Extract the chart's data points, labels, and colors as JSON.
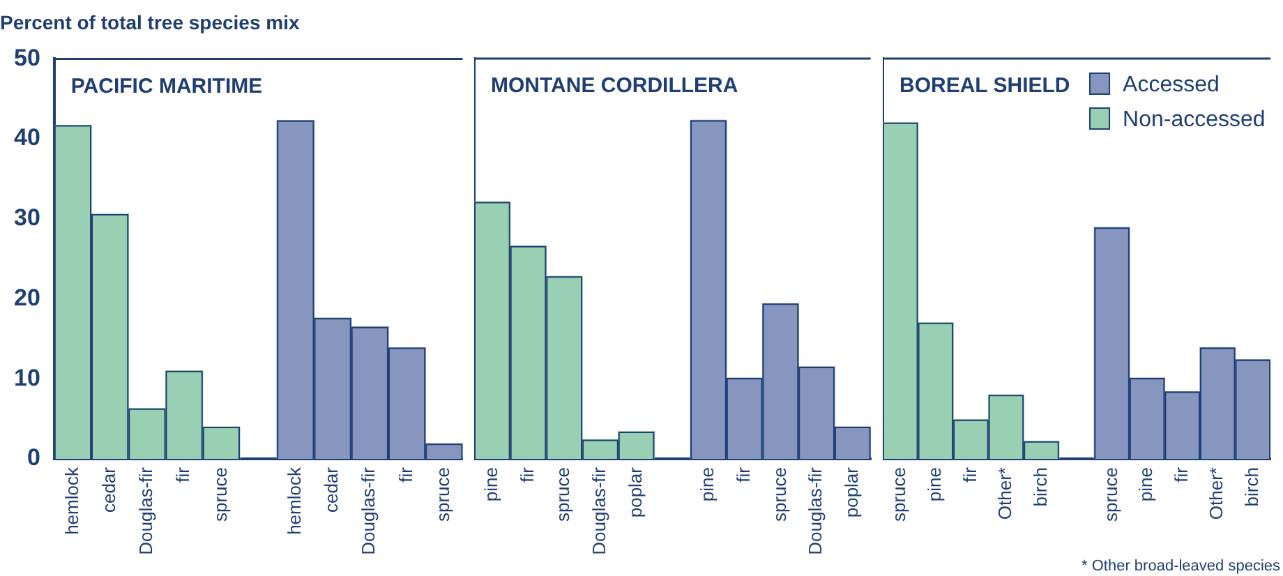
{
  "chart_data": [
    {
      "type": "bar",
      "title": "PACIFIC MARITIME",
      "ylabel": "Percent of total tree species mix",
      "categories": [
        "hemlock",
        "cedar",
        "Douglas-fir",
        "fir",
        "spruce",
        null,
        "hemlock",
        "cedar",
        "Douglas-fir",
        "fir",
        "spruce"
      ],
      "series": [
        {
          "color": "#8796bf",
          "values": [
            null,
            null,
            null,
            null,
            null,
            null,
            42.3,
            17.6,
            16.5,
            13.9,
            1.9
          ]
        },
        {
          "color": "#99d0b4",
          "values": [
            41.7,
            30.6,
            6.3,
            11.0,
            4.0,
            null,
            null,
            null,
            null,
            null,
            null
          ]
        }
      ],
      "ylim": [
        0,
        50
      ],
      "yticks": [
        0,
        10,
        20,
        30,
        40,
        50
      ]
    },
    {
      "type": "bar",
      "title": "MONTANE CORDILLERA",
      "categories": [
        "pine",
        "fir",
        "spruce",
        "Douglas-fir",
        "poplar",
        null,
        "pine",
        "fir",
        "spruce",
        "Douglas-fir",
        "poplar"
      ],
      "series": [
        {
          "color": "#8796bf",
          "values": [
            null,
            null,
            null,
            null,
            null,
            null,
            42.3,
            10.1,
            19.4,
            11.5,
            4.0
          ]
        },
        {
          "color": "#99d0b4",
          "values": [
            32.1,
            26.6,
            22.8,
            2.4,
            3.4,
            null,
            null,
            null,
            null,
            null,
            null
          ]
        }
      ],
      "ylim": [
        0,
        50
      ],
      "yticks": [
        0,
        10,
        20,
        30,
        40,
        50
      ],
      "tick_labels": "x"
    },
    {
      "type": "bar",
      "title": "BOREAL SHIELD",
      "categories": [
        "spruce",
        "pine",
        "fir",
        "Other*",
        "birch",
        null,
        "spruce",
        "pine",
        "fir",
        "Other*",
        "birch"
      ],
      "series": [
        {
          "name": "Accessed",
          "color": "#8796bf",
          "values": [
            null,
            null,
            null,
            null,
            null,
            null,
            28.9,
            10.1,
            8.4,
            13.9,
            12.4
          ]
        },
        {
          "name": "Non-accessed",
          "color": "#99d0b4",
          "values": [
            42.0,
            17.0,
            4.9,
            8.0,
            2.2,
            null,
            null,
            null,
            null,
            null,
            null
          ]
        }
      ],
      "ylim": [
        0,
        50
      ],
      "yticks": [
        0,
        10,
        20,
        30,
        40,
        50
      ],
      "tick_labels": "x",
      "legend": "top right",
      "annotations": [
        "* Other broad-leaved species"
      ]
    }
  ]
}
